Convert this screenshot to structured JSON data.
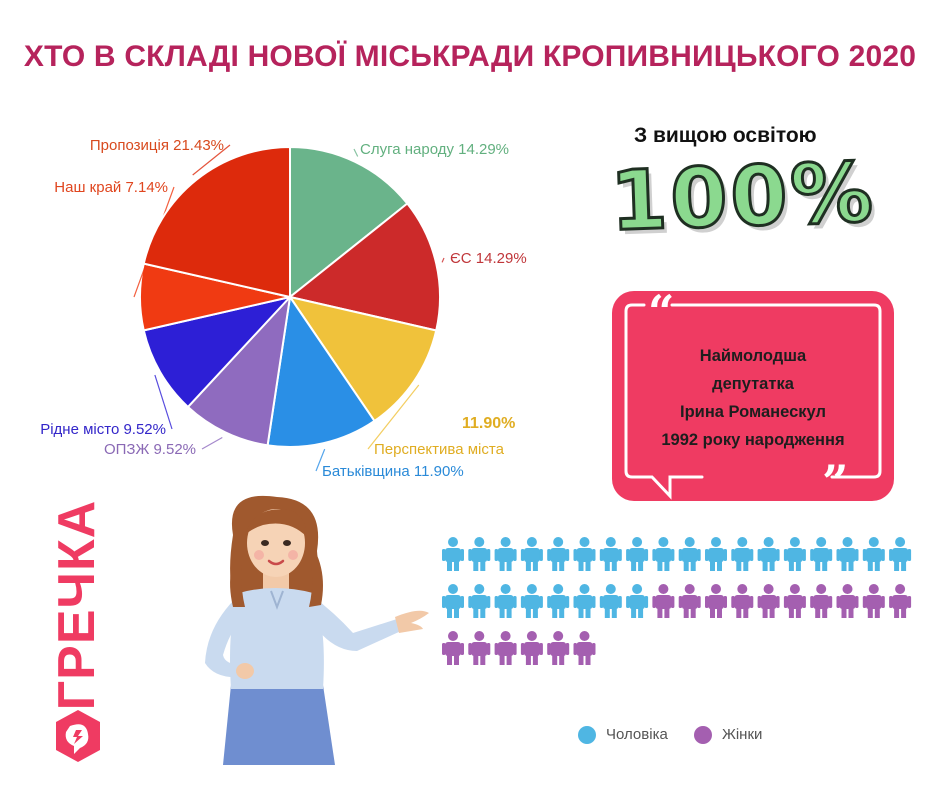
{
  "title": "ХТО В СКЛАДІ НОВОЇ МІСЬКРАДИ КРОПИВНИЦЬКОГО 2020",
  "chart_data": {
    "type": "pie",
    "slices": [
      {
        "name": "Слуга народу",
        "label": "Слуга народу 14.29%",
        "value": 14.29,
        "color": "#6ab48b",
        "label_color": "#62b07f"
      },
      {
        "name": "ЄС",
        "label": "ЄС 14.29%",
        "value": 14.29,
        "color": "#cc2a2a",
        "label_color": "#c0363a"
      },
      {
        "name": "Перспектива міста",
        "label": "Перспектива міста",
        "value": 11.9,
        "color": "#f0c23b",
        "label_color": "#e0ad22"
      },
      {
        "name": "Батьківщина",
        "label": "Батьківщина 11.90%",
        "value": 11.9,
        "color": "#2a8fe6",
        "label_color": "#2a8ad8"
      },
      {
        "name": "ОПЗЖ",
        "label": "ОПЗЖ 9.52%",
        "value": 9.52,
        "color": "#8f6bbf",
        "label_color": "#8a69b5"
      },
      {
        "name": "Рідне місто",
        "label": "Рідне місто 9.52%",
        "value": 9.52,
        "color": "#2d1fd6",
        "label_color": "#3326c9"
      },
      {
        "name": "Наш край",
        "label": "Наш край 7.14%",
        "value": 7.14,
        "color": "#f03a12",
        "label_color": "#e0461f"
      },
      {
        "name": "Пропозиція",
        "label": "Пропозиція 21.43%",
        "value": 21.43,
        "color": "#dd2a0c",
        "label_color": "#d84a1e"
      }
    ],
    "extra_label": {
      "text": "11.90%",
      "color": "#e0ad22"
    }
  },
  "education": {
    "label": "З вищою  освітою",
    "value": "100%"
  },
  "quote": {
    "lines": [
      "Наймолодша",
      "депутатка",
      "Ірина Романескул",
      "1992 року народження"
    ],
    "open_mark": "“",
    "close_mark": "”"
  },
  "gender": {
    "men": 26,
    "women": 16,
    "men_color": "#4fb6e3",
    "women_color": "#a45fb0",
    "legend_men": "Чоловіка",
    "legend_women": "Жінки"
  },
  "logo": {
    "text": "ГРЕЧКА",
    "color": "#ef3b62"
  }
}
